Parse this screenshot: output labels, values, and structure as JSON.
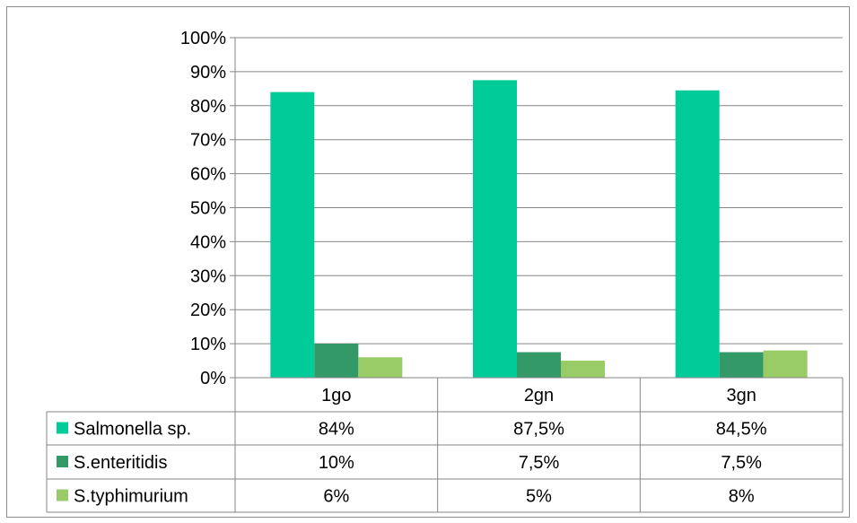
{
  "chart_data": {
    "type": "bar",
    "categories": [
      "1go",
      "2gn",
      "3gn"
    ],
    "series": [
      {
        "name": "Salmonella sp.",
        "values": [
          84,
          87.5,
          84.5
        ],
        "labels": [
          "84%",
          "87,5%",
          "84,5%"
        ],
        "color": "#00cc99"
      },
      {
        "name": "S.enteritidis",
        "values": [
          10,
          7.5,
          7.5
        ],
        "labels": [
          "10%",
          "7,5%",
          "7,5%"
        ],
        "color": "#339966"
      },
      {
        "name": "S.typhimurium",
        "values": [
          6,
          5,
          8
        ],
        "labels": [
          "6%",
          "5%",
          "8%"
        ],
        "color": "#99cc66"
      }
    ],
    "yticks": [
      "0%",
      "10%",
      "20%",
      "30%",
      "40%",
      "50%",
      "60%",
      "70%",
      "80%",
      "90%",
      "100%"
    ],
    "ylim": [
      0,
      100
    ],
    "grid": true,
    "legend": "data-table"
  }
}
